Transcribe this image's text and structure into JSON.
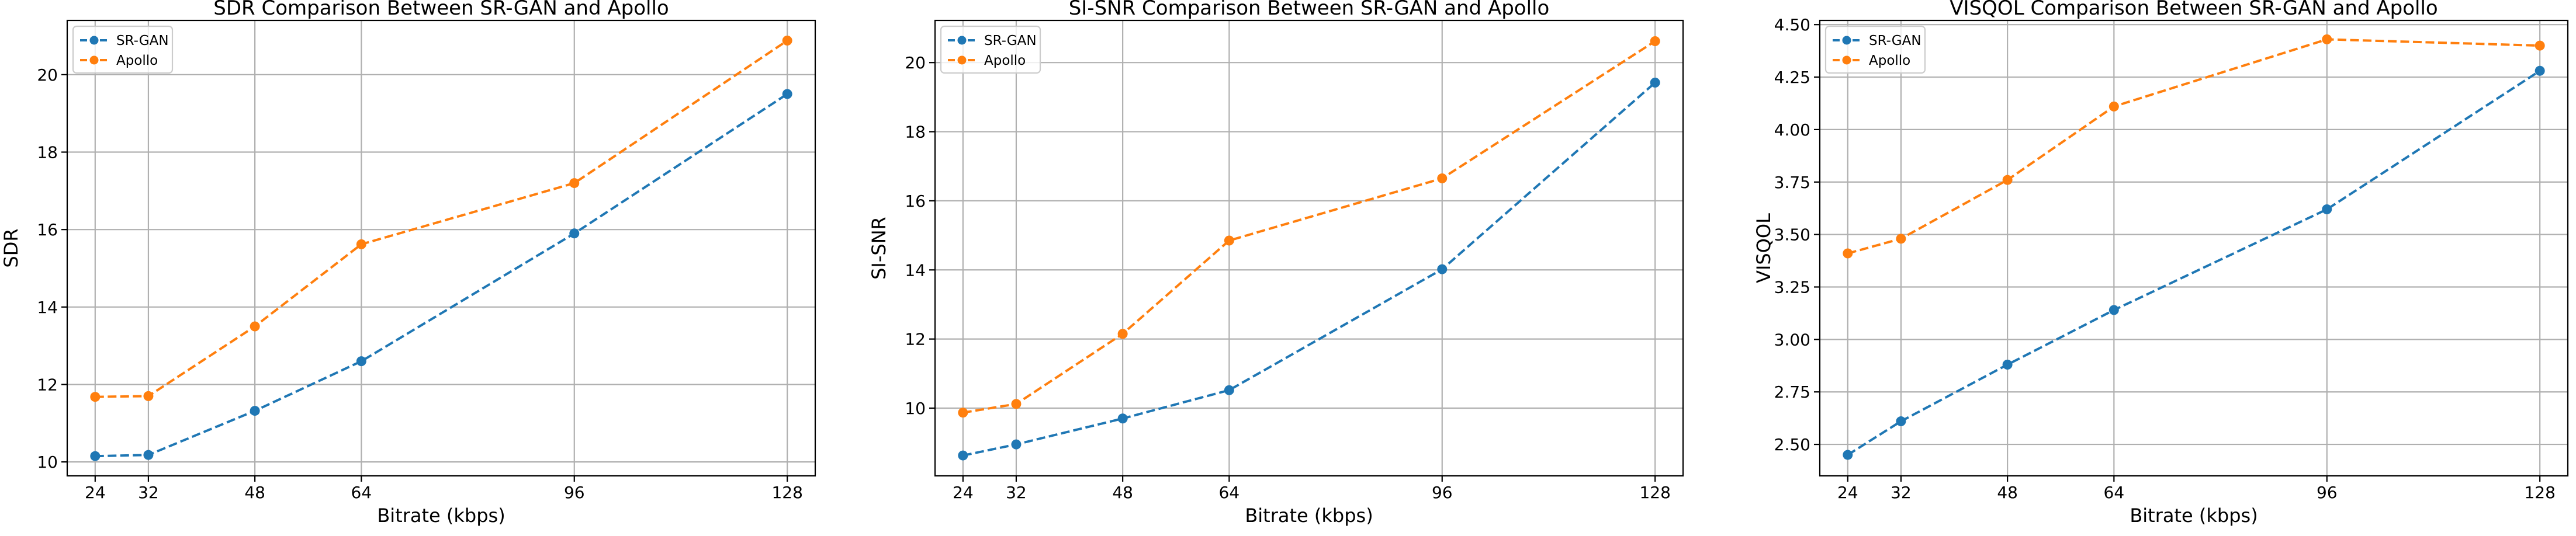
{
  "colors": {
    "series_1": "#1f77b4",
    "series_2": "#ff7f0e"
  },
  "chart_data": [
    {
      "type": "line",
      "title": "SDR Comparison Between SR-GAN and Apollo",
      "xlabel": "Bitrate (kbps)",
      "ylabel": "SDR",
      "x": [
        24,
        32,
        48,
        64,
        96,
        128
      ],
      "xticks": [
        "24",
        "32",
        "48",
        "64",
        "96",
        "128"
      ],
      "xlim": [
        19.8,
        132.2
      ],
      "ylim": [
        9.64,
        21.4
      ],
      "yticks": [
        10,
        12,
        14,
        16,
        18,
        20
      ],
      "ytick_labels": [
        "10",
        "12",
        "14",
        "16",
        "18",
        "20"
      ],
      "grid": true,
      "legend": "upper-left",
      "series": [
        {
          "name": "SR-GAN",
          "values": [
            10.15,
            10.18,
            11.32,
            12.6,
            15.9,
            19.5
          ]
        },
        {
          "name": "Apollo",
          "values": [
            11.68,
            11.7,
            13.5,
            15.62,
            17.2,
            20.88
          ]
        }
      ]
    },
    {
      "type": "line",
      "title": "SI-SNR Comparison Between SR-GAN and Apollo",
      "xlabel": "Bitrate (kbps)",
      "ylabel": "SI-SNR",
      "x": [
        24,
        32,
        48,
        64,
        96,
        128
      ],
      "xticks": [
        "24",
        "32",
        "48",
        "64",
        "96",
        "128"
      ],
      "xlim": [
        19.8,
        132.2
      ],
      "ylim": [
        8.04,
        21.22
      ],
      "yticks": [
        10,
        12,
        14,
        16,
        18,
        20
      ],
      "ytick_labels": [
        "10",
        "12",
        "14",
        "16",
        "18",
        "20"
      ],
      "grid": true,
      "legend": "upper-left",
      "series": [
        {
          "name": "SR-GAN",
          "values": [
            8.63,
            8.95,
            9.7,
            10.52,
            14.02,
            19.42
          ]
        },
        {
          "name": "Apollo",
          "values": [
            9.87,
            10.12,
            12.15,
            14.85,
            16.65,
            20.62
          ]
        }
      ]
    },
    {
      "type": "line",
      "title": "VISQOL Comparison Between SR-GAN and Apollo",
      "xlabel": "Bitrate (kbps)",
      "ylabel": "VISQOL",
      "x": [
        24,
        32,
        48,
        64,
        96,
        128
      ],
      "xticks": [
        "24",
        "32",
        "48",
        "64",
        "96",
        "128"
      ],
      "xlim": [
        19.8,
        132.2
      ],
      "ylim": [
        2.35,
        4.52
      ],
      "yticks": [
        2.5,
        2.75,
        3.0,
        3.25,
        3.5,
        3.75,
        4.0,
        4.25,
        4.5
      ],
      "ytick_labels": [
        "2.50",
        "2.75",
        "3.00",
        "3.25",
        "3.50",
        "3.75",
        "4.00",
        "4.25",
        "4.50"
      ],
      "grid": true,
      "legend": "upper-left",
      "series": [
        {
          "name": "SR-GAN",
          "values": [
            2.45,
            2.61,
            2.88,
            3.14,
            3.62,
            4.28
          ]
        },
        {
          "name": "Apollo",
          "values": [
            3.41,
            3.48,
            3.76,
            4.11,
            4.43,
            4.4
          ]
        }
      ]
    }
  ]
}
